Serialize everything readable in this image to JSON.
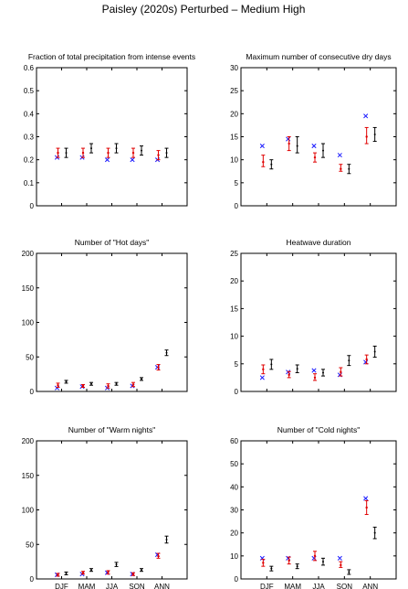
{
  "figure_title": "Paisley (2020s) Perturbed – Medium High",
  "chart_data": [
    {
      "type": "scatter",
      "title": "Fraction of total precipitation from intense events",
      "categories": [
        "DJF",
        "MAM",
        "JJA",
        "SON",
        "ANN"
      ],
      "show_category_labels": false,
      "ylim": [
        0,
        0.6
      ],
      "yticks": [
        "0",
        "0.1",
        "0.2",
        "0.3",
        "0.4",
        "0.5",
        "0.6"
      ],
      "ytick_values": [
        0,
        0.1,
        0.2,
        0.3,
        0.4,
        0.5,
        0.6
      ],
      "observed": [
        0.21,
        0.21,
        0.2,
        0.2,
        0.2
      ],
      "baseline": {
        "mid": [
          0.23,
          0.23,
          0.23,
          0.23,
          0.22
        ],
        "low": [
          0.21,
          0.21,
          0.21,
          0.21,
          0.2
        ],
        "high": [
          0.25,
          0.25,
          0.25,
          0.25,
          0.24
        ]
      },
      "scenario": {
        "mid": [
          0.23,
          0.25,
          0.25,
          0.24,
          0.23
        ],
        "low": [
          0.21,
          0.23,
          0.23,
          0.22,
          0.21
        ],
        "high": [
          0.25,
          0.27,
          0.27,
          0.26,
          0.25
        ]
      }
    },
    {
      "type": "scatter",
      "title": "Maximum number of consecutive dry days",
      "categories": [
        "DJF",
        "MAM",
        "JJA",
        "SON",
        "ANN"
      ],
      "show_category_labels": false,
      "ylim": [
        0,
        30
      ],
      "yticks": [
        "0",
        "5",
        "10",
        "15",
        "20",
        "25",
        "30"
      ],
      "ytick_values": [
        0,
        5,
        10,
        15,
        20,
        25,
        30
      ],
      "observed": [
        13,
        14.5,
        13,
        11,
        19.5
      ],
      "baseline": {
        "mid": [
          9.5,
          13.5,
          10.5,
          8,
          15
        ],
        "low": [
          8.5,
          12,
          9.5,
          7.5,
          13.5
        ],
        "high": [
          11,
          15,
          11.5,
          9,
          17
        ]
      },
      "scenario": {
        "mid": [
          9,
          13,
          12,
          8,
          15.5
        ],
        "low": [
          8,
          11.5,
          10.5,
          7,
          14
        ],
        "high": [
          10,
          15,
          13.5,
          9,
          17
        ]
      }
    },
    {
      "type": "scatter",
      "title": "Number of \"Hot days\"",
      "categories": [
        "DJF",
        "MAM",
        "JJA",
        "SON",
        "ANN"
      ],
      "show_category_labels": false,
      "ylim": [
        0,
        200
      ],
      "yticks": [
        "0",
        "50",
        "100",
        "150",
        "200"
      ],
      "ytick_values": [
        0,
        50,
        100,
        150,
        200
      ],
      "observed": [
        5,
        7,
        5,
        8,
        35
      ],
      "baseline": {
        "mid": [
          9,
          8,
          8,
          10,
          35
        ],
        "low": [
          6,
          6,
          5,
          7,
          31
        ],
        "high": [
          12,
          10,
          11,
          13,
          39
        ]
      },
      "scenario": {
        "mid": [
          14,
          11,
          11,
          18,
          56
        ],
        "low": [
          12,
          9,
          9,
          16,
          52
        ],
        "high": [
          16,
          13,
          13,
          20,
          60
        ]
      }
    },
    {
      "type": "scatter",
      "title": "Heatwave duration",
      "categories": [
        "DJF",
        "MAM",
        "JJA",
        "SON",
        "ANN"
      ],
      "show_category_labels": false,
      "ylim": [
        0,
        25
      ],
      "yticks": [
        "0",
        "5",
        "10",
        "15",
        "20",
        "25"
      ],
      "ytick_values": [
        0,
        5,
        10,
        15,
        20,
        25
      ],
      "observed": [
        2.5,
        3.5,
        3.8,
        3,
        5.3
      ],
      "baseline": {
        "mid": [
          4,
          3,
          2.5,
          3.5,
          5.8
        ],
        "low": [
          3.2,
          2.5,
          2,
          2.8,
          5
        ],
        "high": [
          4.8,
          3.6,
          3.2,
          4.3,
          6.6
        ]
      },
      "scenario": {
        "mid": [
          4.9,
          4.1,
          3.4,
          5.6,
          7.2
        ],
        "low": [
          4,
          3.4,
          2.8,
          4.7,
          6.2
        ],
        "high": [
          5.8,
          4.8,
          4,
          6.5,
          8.2
        ]
      }
    },
    {
      "type": "scatter",
      "title": "Number of \"Warm nights\"",
      "categories": [
        "DJF",
        "MAM",
        "JJA",
        "SON",
        "ANN"
      ],
      "show_category_labels": true,
      "ylim": [
        0,
        200
      ],
      "yticks": [
        "0",
        "50",
        "100",
        "150",
        "200"
      ],
      "ytick_values": [
        0,
        50,
        100,
        150,
        200
      ],
      "observed": [
        6,
        7,
        9,
        7,
        35
      ],
      "baseline": {
        "mid": [
          6,
          9,
          10,
          7,
          33
        ],
        "low": [
          4,
          7,
          7,
          5,
          30
        ],
        "high": [
          8,
          11,
          12,
          9,
          37
        ]
      },
      "scenario": {
        "mid": [
          8,
          13,
          21,
          13,
          57
        ],
        "low": [
          6,
          11,
          18,
          11,
          52
        ],
        "high": [
          10,
          15,
          24,
          15,
          62
        ]
      }
    },
    {
      "type": "scatter",
      "title": "Number of \"Cold nights\"",
      "categories": [
        "DJF",
        "MAM",
        "JJA",
        "SON",
        "ANN"
      ],
      "show_category_labels": true,
      "ylim": [
        0,
        60
      ],
      "yticks": [
        "0",
        "10",
        "20",
        "30",
        "40",
        "50",
        "60"
      ],
      "ytick_values": [
        0,
        10,
        20,
        30,
        40,
        50,
        60
      ],
      "observed": [
        9,
        9,
        9,
        9,
        35
      ],
      "baseline": {
        "mid": [
          7,
          8,
          10,
          6,
          31
        ],
        "low": [
          5.5,
          6.5,
          8,
          5,
          28
        ],
        "high": [
          8.5,
          9.5,
          12,
          7.5,
          34
        ]
      },
      "scenario": {
        "mid": [
          4.5,
          5.5,
          7.5,
          3,
          20
        ],
        "low": [
          3.5,
          4.5,
          6,
          2,
          17.5
        ],
        "high": [
          5.5,
          6.5,
          9,
          4,
          22.5
        ]
      }
    }
  ]
}
